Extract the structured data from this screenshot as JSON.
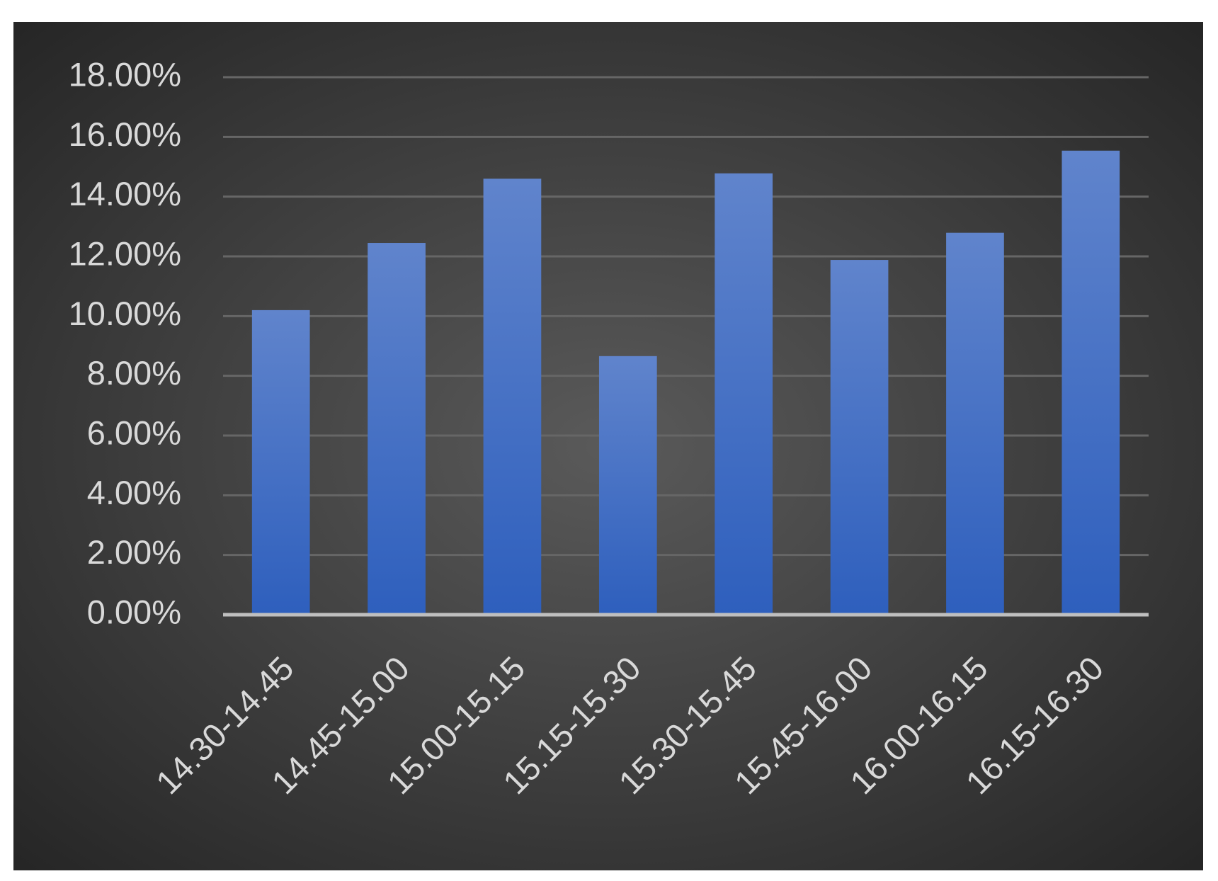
{
  "chart_data": {
    "type": "bar",
    "categories": [
      "14.30-14.45",
      "14.45-15.00",
      "15.00-15.15",
      "15.15-15.30",
      "15.30-15.45",
      "15.45-16.00",
      "16.00-16.15",
      "16.15-16.30"
    ],
    "values": [
      10.2,
      12.45,
      14.6,
      8.66,
      14.78,
      11.88,
      12.79,
      15.54
    ],
    "color": "#4472c4",
    "ylim": [
      0,
      18
    ],
    "yticks": [
      {
        "value": 0,
        "label": "0.00%"
      },
      {
        "value": 2,
        "label": "2.00%"
      },
      {
        "value": 4,
        "label": "4.00%"
      },
      {
        "value": 6,
        "label": "6.00%"
      },
      {
        "value": 8,
        "label": "8.00%"
      },
      {
        "value": 10,
        "label": "10.00%"
      },
      {
        "value": 12,
        "label": "12.00%"
      },
      {
        "value": 14,
        "label": "14.00%"
      },
      {
        "value": 16,
        "label": "16.00%"
      },
      {
        "value": 18,
        "label": "18.00%"
      }
    ],
    "grid": true
  }
}
